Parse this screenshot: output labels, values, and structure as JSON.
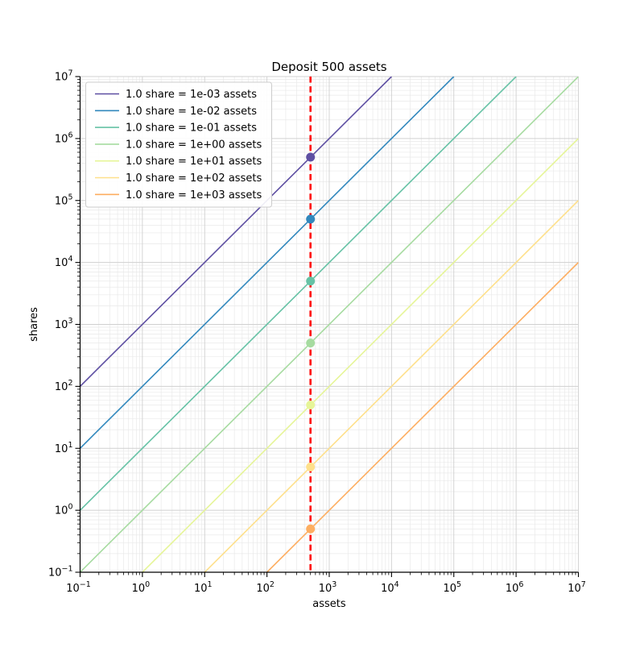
{
  "chart_data": {
    "type": "line",
    "title": "Deposit 500 assets",
    "xlabel": "assets",
    "ylabel": "shares",
    "x_scale": "log",
    "y_scale": "log",
    "xlim": [
      0.1,
      10000000
    ],
    "ylim": [
      0.1,
      10000000
    ],
    "x_tick_exponents": [
      -1,
      0,
      1,
      2,
      3,
      4,
      5,
      6,
      7
    ],
    "y_tick_exponents": [
      -1,
      0,
      1,
      2,
      3,
      4,
      5,
      6,
      7
    ],
    "grid": {
      "major": true,
      "minor": true,
      "major_color": "#d0d0d0",
      "minor_color": "#e9e9e9"
    },
    "legend_position": "upper left",
    "deposit_assets": 500,
    "series": [
      {
        "label": "1.0 share = 1e-03 assets",
        "assets_per_share": 0.001,
        "color": "#5e4fa2",
        "point": {
          "x": 500,
          "y": 500000
        }
      },
      {
        "label": "1.0 share = 1e-02 assets",
        "assets_per_share": 0.01,
        "color": "#3288bd",
        "point": {
          "x": 500,
          "y": 50000
        }
      },
      {
        "label": "1.0 share = 1e-01 assets",
        "assets_per_share": 0.1,
        "color": "#66c2a5",
        "point": {
          "x": 500,
          "y": 5000
        }
      },
      {
        "label": "1.0 share = 1e+00 assets",
        "assets_per_share": 1,
        "color": "#a6dba0",
        "point": {
          "x": 500,
          "y": 500
        }
      },
      {
        "label": "1.0 share = 1e+01 assets",
        "assets_per_share": 10,
        "color": "#e6f598",
        "point": {
          "x": 500,
          "y": 50
        }
      },
      {
        "label": "1.0 share = 1e+02 assets",
        "assets_per_share": 100,
        "color": "#fee08b",
        "point": {
          "x": 500,
          "y": 5
        }
      },
      {
        "label": "1.0 share = 1e+03 assets",
        "assets_per_share": 1000,
        "color": "#fdae61",
        "point": {
          "x": 500,
          "y": 0.5
        }
      }
    ],
    "vline": {
      "x": 500,
      "color": "#ff0000",
      "style": "dashed"
    }
  }
}
